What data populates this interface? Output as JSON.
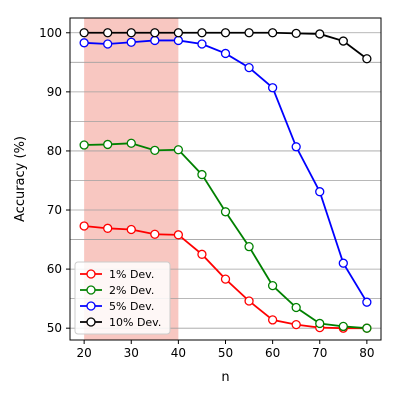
{
  "chart_data": {
    "type": "line",
    "xlabel": "n",
    "ylabel": "Accuracy (%)",
    "xlim": [
      17,
      83
    ],
    "ylim": [
      48,
      102.5
    ],
    "x_ticks": [
      20,
      30,
      40,
      50,
      60,
      70,
      80
    ],
    "y_ticks": [
      50,
      60,
      70,
      80,
      90,
      100
    ],
    "y_gridlines": [
      50,
      55,
      60,
      65,
      70,
      75,
      80,
      85,
      90,
      95,
      100
    ],
    "grid": "horizontal",
    "highlight_region": {
      "x_start": 20,
      "x_end": 40,
      "color": "#f4a9a0"
    },
    "legend_position": "lower-left",
    "x": [
      20,
      25,
      30,
      35,
      40,
      45,
      50,
      55,
      60,
      65,
      70,
      75,
      80
    ],
    "series": [
      {
        "name": "1% Dev.",
        "color": "#ff0000",
        "values": [
          67.3,
          66.9,
          66.7,
          65.9,
          65.8,
          62.5,
          58.3,
          54.6,
          51.4,
          50.6,
          50.1,
          50.0,
          50.0
        ]
      },
      {
        "name": "2% Dev.",
        "color": "#008000",
        "values": [
          81.0,
          81.1,
          81.3,
          80.1,
          80.2,
          76.0,
          69.7,
          63.8,
          57.2,
          53.5,
          50.8,
          50.3,
          50.0
        ]
      },
      {
        "name": "5% Dev.",
        "color": "#0000ff",
        "values": [
          98.3,
          98.1,
          98.4,
          98.7,
          98.7,
          98.1,
          96.5,
          94.1,
          90.7,
          80.7,
          73.1,
          61.0,
          54.4
        ]
      },
      {
        "name": "10% Dev.",
        "color": "#000000",
        "values": [
          100.0,
          100.0,
          100.0,
          100.0,
          100.0,
          100.0,
          100.0,
          100.0,
          100.0,
          99.9,
          99.8,
          98.6,
          95.6
        ]
      }
    ]
  }
}
